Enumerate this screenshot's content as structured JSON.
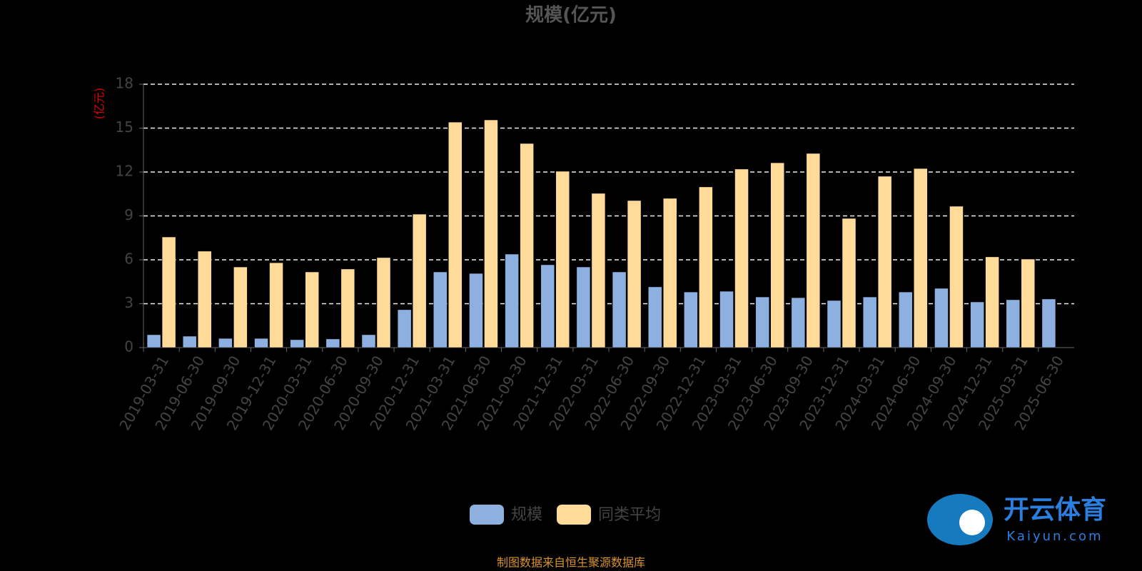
{
  "chart_data": {
    "type": "bar",
    "title": "规模(亿元)",
    "y_label": "(亿元)",
    "categories": [
      "2019-03-31",
      "2019-06-30",
      "2019-09-30",
      "2019-12-31",
      "2020-03-31",
      "2020-06-30",
      "2020-09-30",
      "2020-12-31",
      "2021-03-31",
      "2021-06-30",
      "2021-09-30",
      "2021-12-31",
      "2022-03-31",
      "2022-06-30",
      "2022-09-30",
      "2022-12-31",
      "2023-03-31",
      "2023-06-30",
      "2023-09-30",
      "2023-12-31",
      "2024-03-31",
      "2024-06-30",
      "2024-09-30",
      "2024-12-31",
      "2025-03-31",
      "2025-06-30"
    ],
    "series": [
      {
        "name": "规模",
        "color": "#8eb0e0",
        "values": [
          0.88,
          0.78,
          0.63,
          0.63,
          0.54,
          0.59,
          0.88,
          2.59,
          5.17,
          5.07,
          6.39,
          5.66,
          5.51,
          5.17,
          4.15,
          3.8,
          3.85,
          3.46,
          3.41,
          3.22,
          3.46,
          3.8,
          4.05,
          3.12,
          3.27,
          3.32
        ]
      },
      {
        "name": "同类平均",
        "color": "#ffdb9a",
        "values": [
          7.56,
          6.59,
          5.51,
          5.8,
          5.17,
          5.37,
          6.15,
          9.12,
          15.41,
          15.56,
          13.95,
          12.05,
          10.54,
          10.05,
          10.2,
          10.98,
          12.2,
          12.63,
          13.27,
          8.83,
          11.71,
          12.24,
          9.66,
          6.2,
          6.05,
          null
        ]
      }
    ],
    "ylim": [
      0,
      18
    ],
    "yticks": [
      0,
      3,
      6,
      9,
      12,
      15,
      18
    ],
    "grid": true,
    "legend": "bottom",
    "source": "制图数据来自恒生聚源数据库"
  },
  "watermark": {
    "brand": "开云体育",
    "site": "Kaiyun.com"
  }
}
